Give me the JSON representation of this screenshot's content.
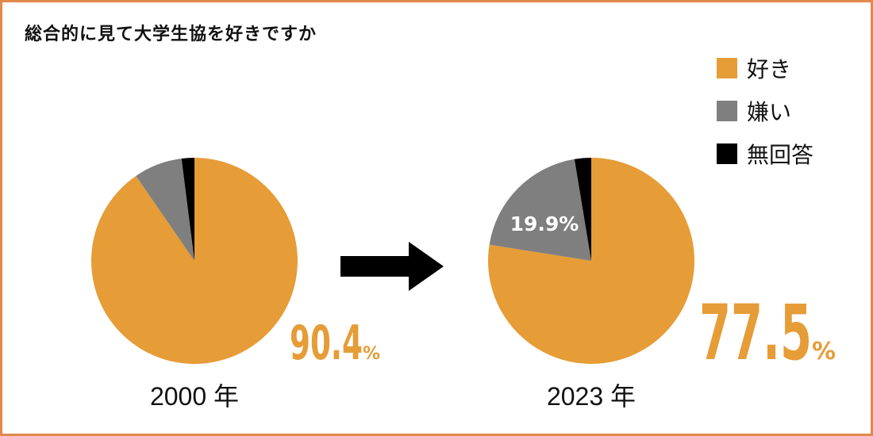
{
  "title": "総合的に見て大学生協を好きですか",
  "legend": [
    {
      "label": "好き",
      "color": "#e69c37"
    },
    {
      "label": "嫌い",
      "color": "#7f7f7f"
    },
    {
      "label": "無回答",
      "color": "#000000"
    }
  ],
  "arrow_icon": "right-arrow-icon",
  "chart_data": [
    {
      "type": "pie",
      "year_label": "2000 年",
      "categories": [
        "好き",
        "嫌い",
        "無回答"
      ],
      "values": [
        90.4,
        7.6,
        2.0
      ],
      "colors": [
        "#e69c37",
        "#7f7f7f",
        "#000000"
      ],
      "pct_label": {
        "number": "90.4",
        "unit": "%"
      },
      "slice_labels": []
    },
    {
      "type": "pie",
      "year_label": "2023 年",
      "categories": [
        "好き",
        "嫌い",
        "無回答"
      ],
      "values": [
        77.5,
        19.9,
        2.6
      ],
      "colors": [
        "#e69c37",
        "#7f7f7f",
        "#000000"
      ],
      "pct_label": {
        "number": "77.5",
        "unit": "%"
      },
      "slice_labels": [
        "19.9%"
      ]
    }
  ]
}
